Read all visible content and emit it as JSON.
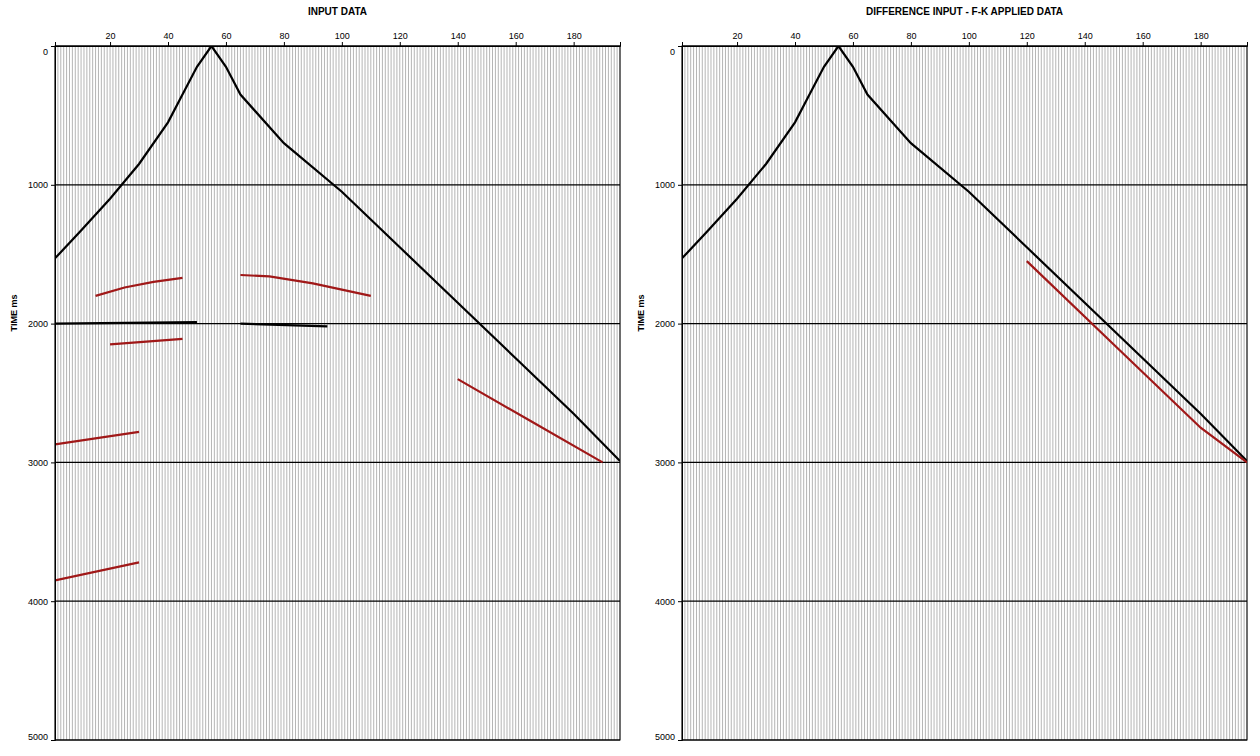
{
  "chart_data": [
    {
      "type": "line",
      "title": "INPUT DATA",
      "y_label": "TIME ms",
      "xlim": [
        1,
        196
      ],
      "xticks": [
        20,
        40,
        60,
        80,
        100,
        120,
        140,
        160,
        180
      ],
      "ylim": [
        0,
        5000
      ],
      "yticks": [
        0,
        1000,
        2000,
        3000,
        4000,
        5000
      ],
      "grid": true,
      "series": [
        {
          "color": "#000000",
          "x": [
            55,
            50,
            45,
            40,
            30,
            20,
            10,
            1
          ],
          "values": [
            0,
            150,
            350,
            550,
            850,
            1100,
            1330,
            1530
          ]
        },
        {
          "color": "#000000",
          "x": [
            55,
            60,
            65,
            80,
            100,
            120,
            140,
            160,
            180,
            196
          ],
          "values": [
            0,
            150,
            350,
            700,
            1050,
            1450,
            1850,
            2250,
            2650,
            2990
          ]
        },
        {
          "color": "#a01818",
          "x": [
            15,
            25,
            35,
            45
          ],
          "values": [
            1800,
            1740,
            1700,
            1670
          ]
        },
        {
          "color": "#a01818",
          "x": [
            65,
            75,
            90,
            110
          ],
          "values": [
            1650,
            1660,
            1710,
            1800
          ]
        },
        {
          "color": "#000000",
          "x": [
            1,
            50
          ],
          "values": [
            2000,
            1990
          ]
        },
        {
          "color": "#000000",
          "x": [
            65,
            95
          ],
          "values": [
            2000,
            2020
          ]
        },
        {
          "color": "#a01818",
          "x": [
            20,
            45
          ],
          "values": [
            2150,
            2110
          ]
        },
        {
          "color": "#a01818",
          "x": [
            1,
            30
          ],
          "values": [
            2870,
            2780
          ]
        },
        {
          "color": "#a01818",
          "x": [
            1,
            30
          ],
          "values": [
            3850,
            3720
          ]
        },
        {
          "color": "#a01818",
          "x": [
            140,
            165,
            190
          ],
          "values": [
            2400,
            2700,
            3000
          ]
        }
      ]
    },
    {
      "type": "line",
      "title": "DIFFERENCE INPUT - F-K APPLIED DATA",
      "y_label": "TIME ms",
      "xlim": [
        1,
        196
      ],
      "xticks": [
        20,
        40,
        60,
        80,
        100,
        120,
        140,
        160,
        180
      ],
      "ylim": [
        0,
        5000
      ],
      "yticks": [
        0,
        1000,
        2000,
        3000,
        4000,
        5000
      ],
      "grid": true,
      "series": [
        {
          "color": "#000000",
          "x": [
            55,
            50,
            45,
            40,
            30,
            20,
            10,
            1
          ],
          "values": [
            0,
            150,
            350,
            550,
            850,
            1100,
            1330,
            1530
          ]
        },
        {
          "color": "#000000",
          "x": [
            55,
            60,
            65,
            80,
            100,
            120,
            140,
            160,
            180,
            196
          ],
          "values": [
            0,
            150,
            350,
            700,
            1050,
            1450,
            1850,
            2250,
            2650,
            2990
          ]
        },
        {
          "color": "#a01818",
          "x": [
            120,
            150,
            180,
            196
          ],
          "values": [
            1550,
            2150,
            2750,
            3000
          ]
        }
      ]
    }
  ]
}
